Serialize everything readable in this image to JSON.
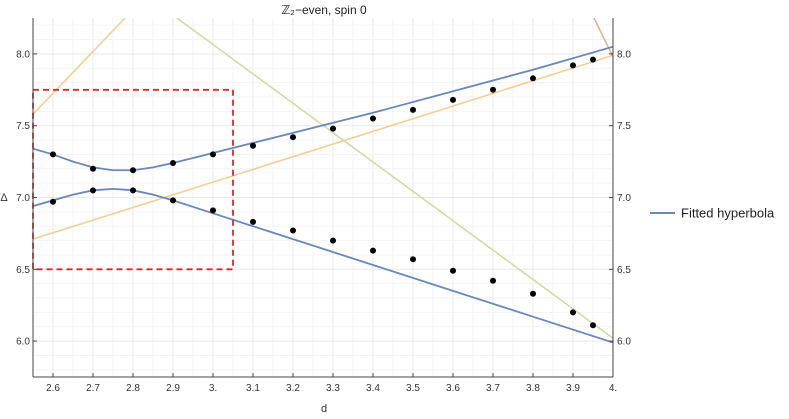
{
  "chart_data": {
    "type": "scatter",
    "title": "ℤ₂−even, spin 0",
    "xlabel": "d",
    "ylabel": "Δ",
    "xlim": [
      2.55,
      4.0
    ],
    "ylim": [
      5.75,
      8.25
    ],
    "grid": true,
    "legend_position": "right",
    "x_ticks": [
      2.6,
      2.7,
      2.8,
      2.9,
      3.0,
      3.1,
      3.2,
      3.3,
      3.4,
      3.5,
      3.6,
      3.7,
      3.8,
      3.9,
      4.0
    ],
    "x_tick_labels": [
      "2.6",
      "2.7",
      "2.8",
      "2.9",
      "3.",
      "3.1",
      "3.2",
      "3.3",
      "3.4",
      "3.5",
      "3.6",
      "3.7",
      "3.8",
      "3.9",
      "4."
    ],
    "y_ticks": [
      6.0,
      6.5,
      7.0,
      7.5,
      8.0
    ],
    "y_tick_labels": [
      "6.0",
      "6.5",
      "7.0",
      "7.5",
      "8.0"
    ],
    "points": {
      "color": "#000000",
      "series": [
        {
          "x": [
            2.6,
            2.7,
            2.8,
            2.9,
            3.0,
            3.1,
            3.2,
            3.3,
            3.4,
            3.5,
            3.6,
            3.7,
            3.8,
            3.9,
            3.95
          ],
          "y": [
            7.3,
            7.2,
            7.19,
            7.24,
            7.3,
            7.36,
            7.42,
            7.48,
            7.55,
            7.61,
            7.68,
            7.75,
            7.83,
            7.92,
            7.96
          ]
        },
        {
          "x": [
            2.6,
            2.7,
            2.8,
            2.9,
            3.0,
            3.1,
            3.2,
            3.3,
            3.4,
            3.5,
            3.6,
            3.7,
            3.8,
            3.9,
            3.95
          ],
          "y": [
            6.97,
            7.05,
            7.05,
            6.98,
            6.91,
            6.83,
            6.77,
            6.7,
            6.63,
            6.57,
            6.49,
            6.42,
            6.33,
            6.2,
            6.11
          ]
        }
      ]
    },
    "fitted_curves": {
      "name": "Fitted hyperbola",
      "color": "#6a87b8",
      "upper": {
        "x": [
          2.55,
          2.6,
          2.65,
          2.7,
          2.75,
          2.8,
          2.85,
          2.9,
          3.0,
          3.1,
          3.2,
          3.4,
          3.6,
          3.8,
          4.0
        ],
        "y": [
          7.34,
          7.3,
          7.25,
          7.21,
          7.19,
          7.19,
          7.21,
          7.24,
          7.31,
          7.38,
          7.45,
          7.59,
          7.74,
          7.89,
          8.05
        ]
      },
      "lower": {
        "x": [
          2.55,
          2.6,
          2.65,
          2.7,
          2.75,
          2.8,
          2.85,
          2.9,
          3.0,
          3.1,
          3.2,
          3.4,
          3.6,
          3.8,
          4.0
        ],
        "y": [
          6.94,
          6.98,
          7.02,
          7.05,
          7.06,
          7.05,
          7.02,
          6.98,
          6.89,
          6.8,
          6.71,
          6.53,
          6.35,
          6.17,
          5.99
        ]
      }
    },
    "asymptotes": [
      {
        "color": "#f2c98a",
        "x": [
          2.55,
          3.0
        ],
        "y": [
          7.58,
          8.89
        ]
      },
      {
        "color": "#f2c98a",
        "x": [
          2.55,
          4.0
        ],
        "y": [
          6.71,
          7.99
        ]
      },
      {
        "color": "#c9d89a",
        "x": [
          2.9,
          4.0
        ],
        "y": [
          8.27,
          6.02
        ]
      },
      {
        "color": "#eba48e",
        "x": [
          3.9,
          4.0
        ],
        "y": [
          8.55,
          7.98
        ]
      }
    ],
    "highlight_box": {
      "color": "#e0252a",
      "x": [
        2.55,
        3.05
      ],
      "y": [
        6.5,
        7.75
      ]
    }
  }
}
